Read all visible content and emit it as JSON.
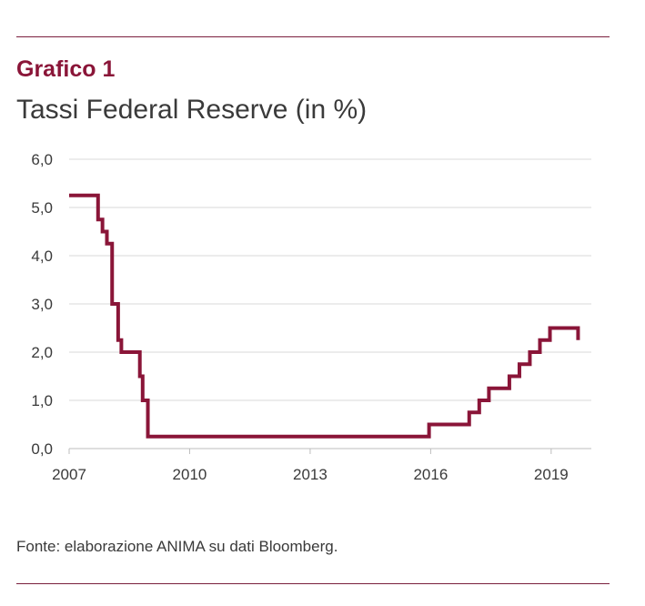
{
  "figure": {
    "label": "Grafico 1",
    "title": "Tassi Federal Reserve (in %)",
    "source": "Fonte: elaborazione ANIMA su dati Bloomberg."
  },
  "colors": {
    "accent": "#8a1538",
    "rule": "#7a1f3d",
    "grid": "#d9d9d9",
    "text": "#3a3a3a"
  },
  "chart_data": {
    "type": "line",
    "step": true,
    "x": [
      2007.0,
      2007.72,
      2007.83,
      2007.94,
      2008.07,
      2008.22,
      2008.3,
      2008.76,
      2008.83,
      2008.96,
      2015.96,
      2016.96,
      2017.21,
      2017.45,
      2017.96,
      2018.21,
      2018.47,
      2018.72,
      2018.97,
      2019.58,
      2019.67
    ],
    "y": [
      5.25,
      4.75,
      4.5,
      4.25,
      3.0,
      2.25,
      2.0,
      1.5,
      1.0,
      0.25,
      0.5,
      0.75,
      1.0,
      1.25,
      1.5,
      1.75,
      2.0,
      2.25,
      2.5,
      2.5,
      2.25
    ],
    "xlim": [
      2007,
      2020
    ],
    "ylim": [
      0,
      6
    ],
    "x_ticks": [
      "2007",
      "2010",
      "2013",
      "2016",
      "2019"
    ],
    "y_ticks": [
      "0,0",
      "1,0",
      "2,0",
      "3,0",
      "4,0",
      "5,0",
      "6,0"
    ],
    "grid": true
  }
}
